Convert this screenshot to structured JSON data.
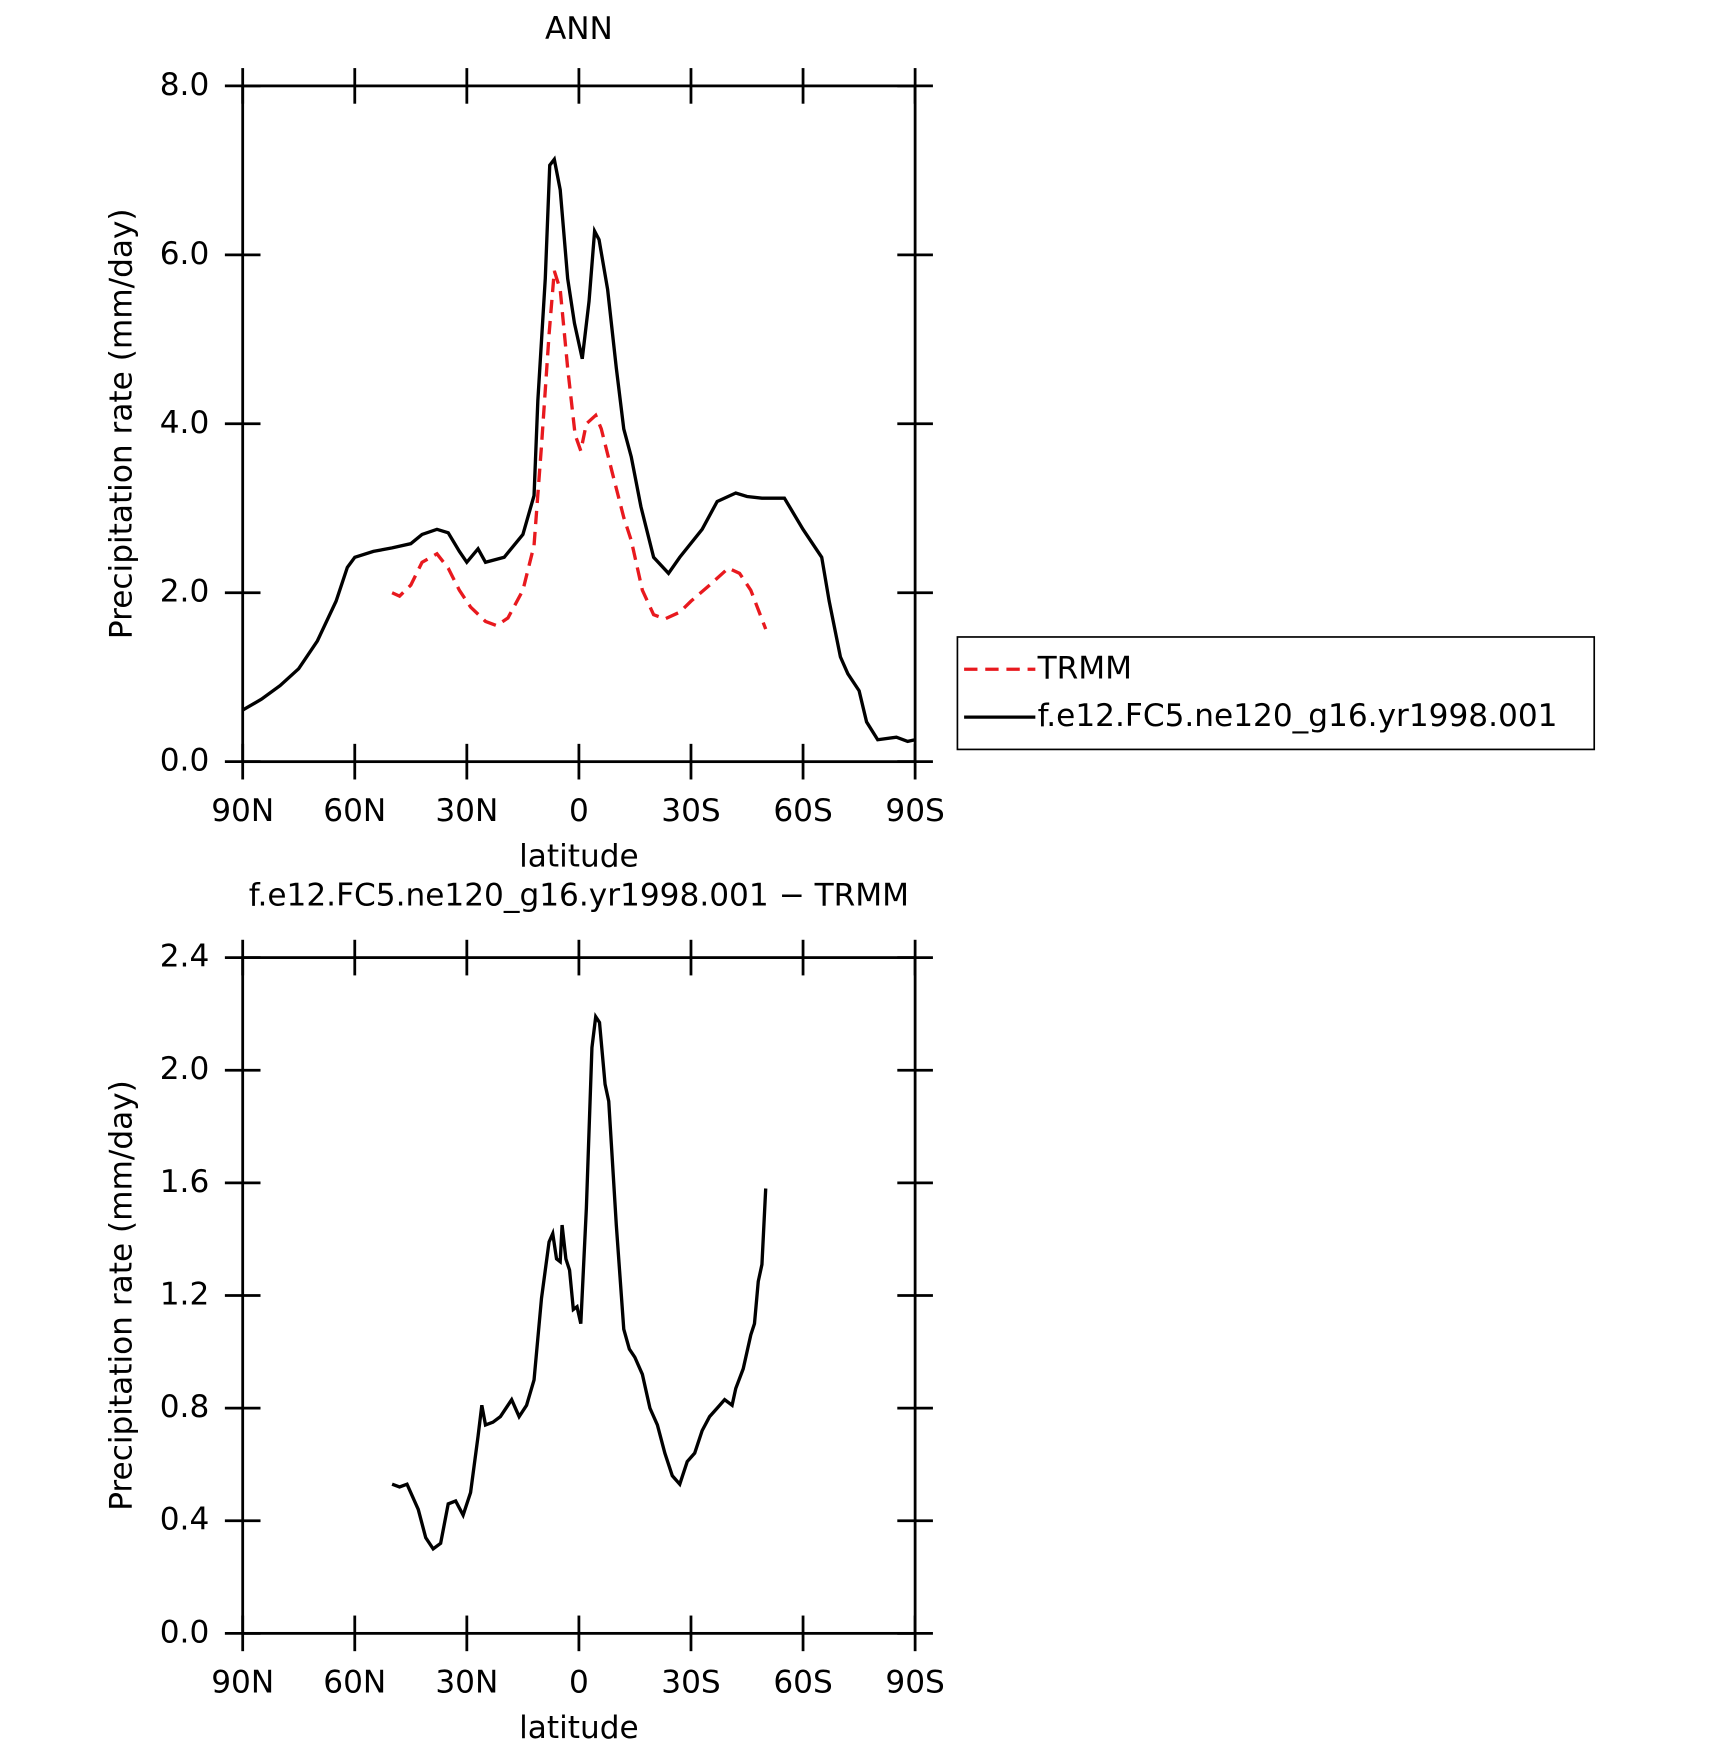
{
  "chart_data": [
    {
      "type": "line",
      "title": "ANN",
      "xlabel": "latitude",
      "ylabel": "Precipitation rate (mm/day)",
      "xlim": [
        90,
        -90
      ],
      "xticks": [
        {
          "value": 90,
          "label": "90N"
        },
        {
          "value": 60,
          "label": "60N"
        },
        {
          "value": 30,
          "label": "30N"
        },
        0,
        {
          "value": -30,
          "label": "30S"
        },
        {
          "value": -60,
          "label": "60S"
        },
        {
          "value": -90,
          "label": "90S"
        }
      ],
      "ylim": [
        0,
        8
      ],
      "yticks": [
        {
          "value": 0,
          "label": "0.0"
        },
        {
          "value": 2,
          "label": "2.0"
        },
        {
          "value": 4,
          "label": "4.0"
        },
        {
          "value": 6,
          "label": "6.0"
        },
        {
          "value": 8,
          "label": "8.0"
        }
      ],
      "legend": "right",
      "series": [
        {
          "name": "TRMM",
          "color": "#e8191e",
          "linestyle": "dashed",
          "x": [
            50,
            48,
            45,
            42,
            38,
            35,
            32,
            29,
            25,
            22,
            19,
            15,
            12,
            10,
            8,
            6.6,
            5,
            3,
            1,
            -0.5,
            -2,
            -4.5,
            -6,
            -9,
            -12,
            -14,
            -17,
            -20,
            -23,
            -27,
            -30,
            -35,
            -40,
            -43,
            -46,
            -50
          ],
          "values": [
            2.0,
            1.96,
            2.09,
            2.36,
            2.46,
            2.29,
            2.03,
            1.83,
            1.66,
            1.61,
            1.7,
            2.03,
            2.56,
            3.74,
            5.06,
            5.81,
            5.59,
            4.66,
            3.87,
            3.68,
            4.0,
            4.1,
            3.94,
            3.41,
            2.89,
            2.62,
            2.03,
            1.74,
            1.69,
            1.77,
            1.9,
            2.09,
            2.29,
            2.23,
            2.03,
            1.57
          ]
        },
        {
          "name": "f.e12.FC5.ne120_g16.yr1998.001",
          "color": "#000000",
          "linestyle": "solid",
          "x": [
            90,
            85,
            80,
            75,
            70,
            65,
            62,
            60,
            55,
            50,
            45,
            42,
            38,
            35,
            32,
            30,
            27,
            25,
            20,
            15,
            12,
            11,
            9,
            7.8,
            6.6,
            5,
            3,
            1.2,
            -0.9,
            -2.7,
            -4.2,
            -5.4,
            -7.7,
            -10,
            -12,
            -14,
            -16.6,
            -20,
            -24,
            -27,
            -33,
            -37,
            -42,
            -45,
            -49,
            -55,
            -60,
            -65,
            -67,
            -70,
            -72,
            -75,
            -77,
            -80,
            -85,
            -88,
            -90
          ],
          "values": [
            0.61,
            0.74,
            0.9,
            1.1,
            1.43,
            1.9,
            2.3,
            2.42,
            2.49,
            2.53,
            2.58,
            2.69,
            2.75,
            2.71,
            2.49,
            2.36,
            2.52,
            2.36,
            2.42,
            2.69,
            3.15,
            4.27,
            5.72,
            7.06,
            7.13,
            6.77,
            5.72,
            5.19,
            4.77,
            5.45,
            6.28,
            6.18,
            5.59,
            4.66,
            3.94,
            3.61,
            3.02,
            2.42,
            2.23,
            2.42,
            2.75,
            3.08,
            3.18,
            3.14,
            3.12,
            3.12,
            2.75,
            2.42,
            1.9,
            1.24,
            1.04,
            0.84,
            0.47,
            0.26,
            0.29,
            0.24,
            0.26
          ]
        }
      ]
    },
    {
      "type": "line",
      "title": "f.e12.FC5.ne120_g16.yr1998.001 − TRMM",
      "xlabel": "latitude",
      "ylabel": "Precipitation rate (mm/day)",
      "xlim": [
        90,
        -90
      ],
      "xticks": [
        {
          "value": 90,
          "label": "90N"
        },
        {
          "value": 60,
          "label": "60N"
        },
        {
          "value": 30,
          "label": "30N"
        },
        0,
        {
          "value": -30,
          "label": "30S"
        },
        {
          "value": -60,
          "label": "60S"
        },
        {
          "value": -90,
          "label": "90S"
        }
      ],
      "ylim": [
        0,
        2.4
      ],
      "yticks": [
        {
          "value": 0,
          "label": "0.0"
        },
        0.4,
        0.8,
        1.2,
        1.6,
        {
          "value": 2,
          "label": "2.0"
        },
        2.4
      ],
      "series": [
        {
          "color": "#000000",
          "linestyle": "solid",
          "x": [
            50,
            48,
            46,
            43,
            41,
            39,
            37,
            35,
            33,
            31,
            29,
            27,
            26,
            25,
            23,
            21,
            18,
            16,
            14,
            12,
            10,
            8,
            7,
            6,
            5,
            4.5,
            3.5,
            2.5,
            1.5,
            0.5,
            -0.5,
            -2,
            -3.5,
            -4.5,
            -5.5,
            -7,
            -8,
            -10,
            -12,
            -13.5,
            -15,
            -17,
            -19,
            -21,
            -23,
            -25,
            -27,
            -29,
            -31,
            -33,
            -35,
            -37,
            -39,
            -41,
            -42,
            -44,
            -46,
            -47,
            -48,
            -49,
            -50
          ],
          "values": [
            0.53,
            0.52,
            0.53,
            0.44,
            0.34,
            0.3,
            0.32,
            0.46,
            0.47,
            0.42,
            0.5,
            0.7,
            0.81,
            0.74,
            0.75,
            0.77,
            0.83,
            0.77,
            0.81,
            0.9,
            1.19,
            1.39,
            1.42,
            1.33,
            1.32,
            1.45,
            1.33,
            1.29,
            1.15,
            1.16,
            1.1,
            1.51,
            2.08,
            2.19,
            2.17,
            1.95,
            1.89,
            1.45,
            1.08,
            1.01,
            0.98,
            0.92,
            0.8,
            0.74,
            0.64,
            0.56,
            0.53,
            0.61,
            0.64,
            0.72,
            0.77,
            0.8,
            0.83,
            0.81,
            0.87,
            0.94,
            1.06,
            1.1,
            1.25,
            1.31,
            1.58
          ]
        }
      ]
    }
  ]
}
